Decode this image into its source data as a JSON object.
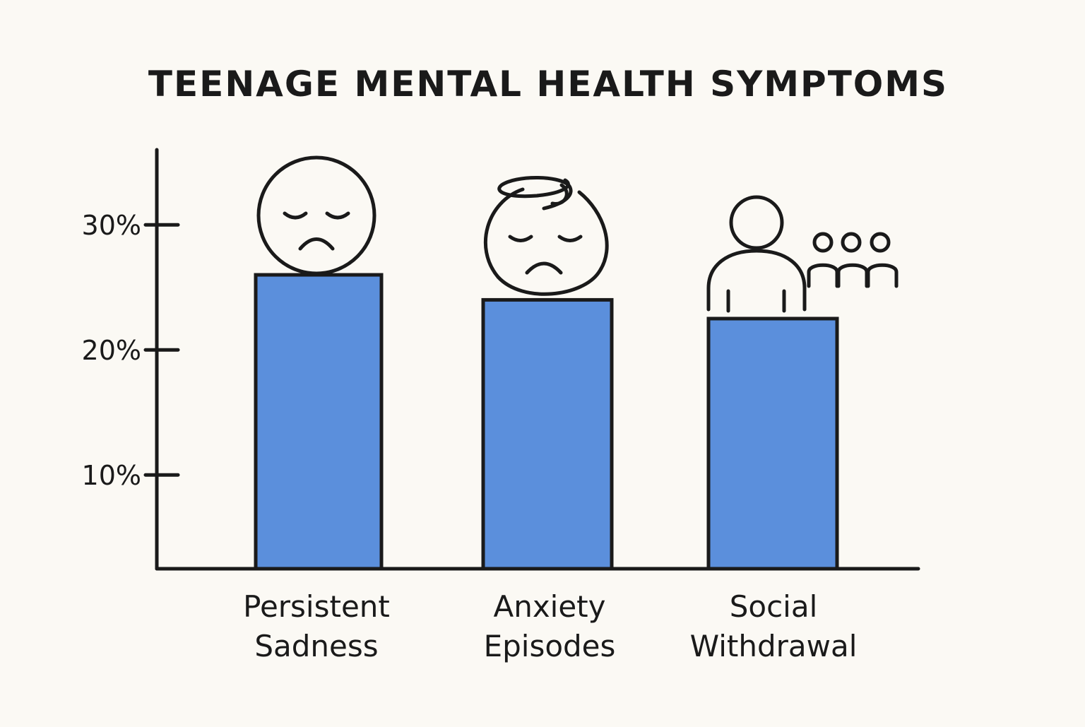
{
  "chart_data": {
    "type": "bar",
    "title": "TEENAGE MENTAL HEALTH SYMPTOMS",
    "xlabel": "",
    "ylabel": "",
    "categories": [
      [
        "Persistent",
        "Sadness"
      ],
      [
        "Anxiety",
        "Episodes"
      ],
      [
        "Social",
        "Withdrawal"
      ]
    ],
    "values": [
      26,
      24,
      22.5
    ],
    "yticks": [
      {
        "value": 10,
        "label": "10%"
      },
      {
        "value": 20,
        "label": "20%"
      },
      {
        "value": 30,
        "label": "30%"
      }
    ],
    "ylim": [
      2.5,
      36
    ],
    "grid": false,
    "legend": "none",
    "bar_color": "#5b8fdc",
    "icons": [
      "sad-face-icon",
      "anxious-face-icon",
      "isolated-person-icon"
    ]
  }
}
